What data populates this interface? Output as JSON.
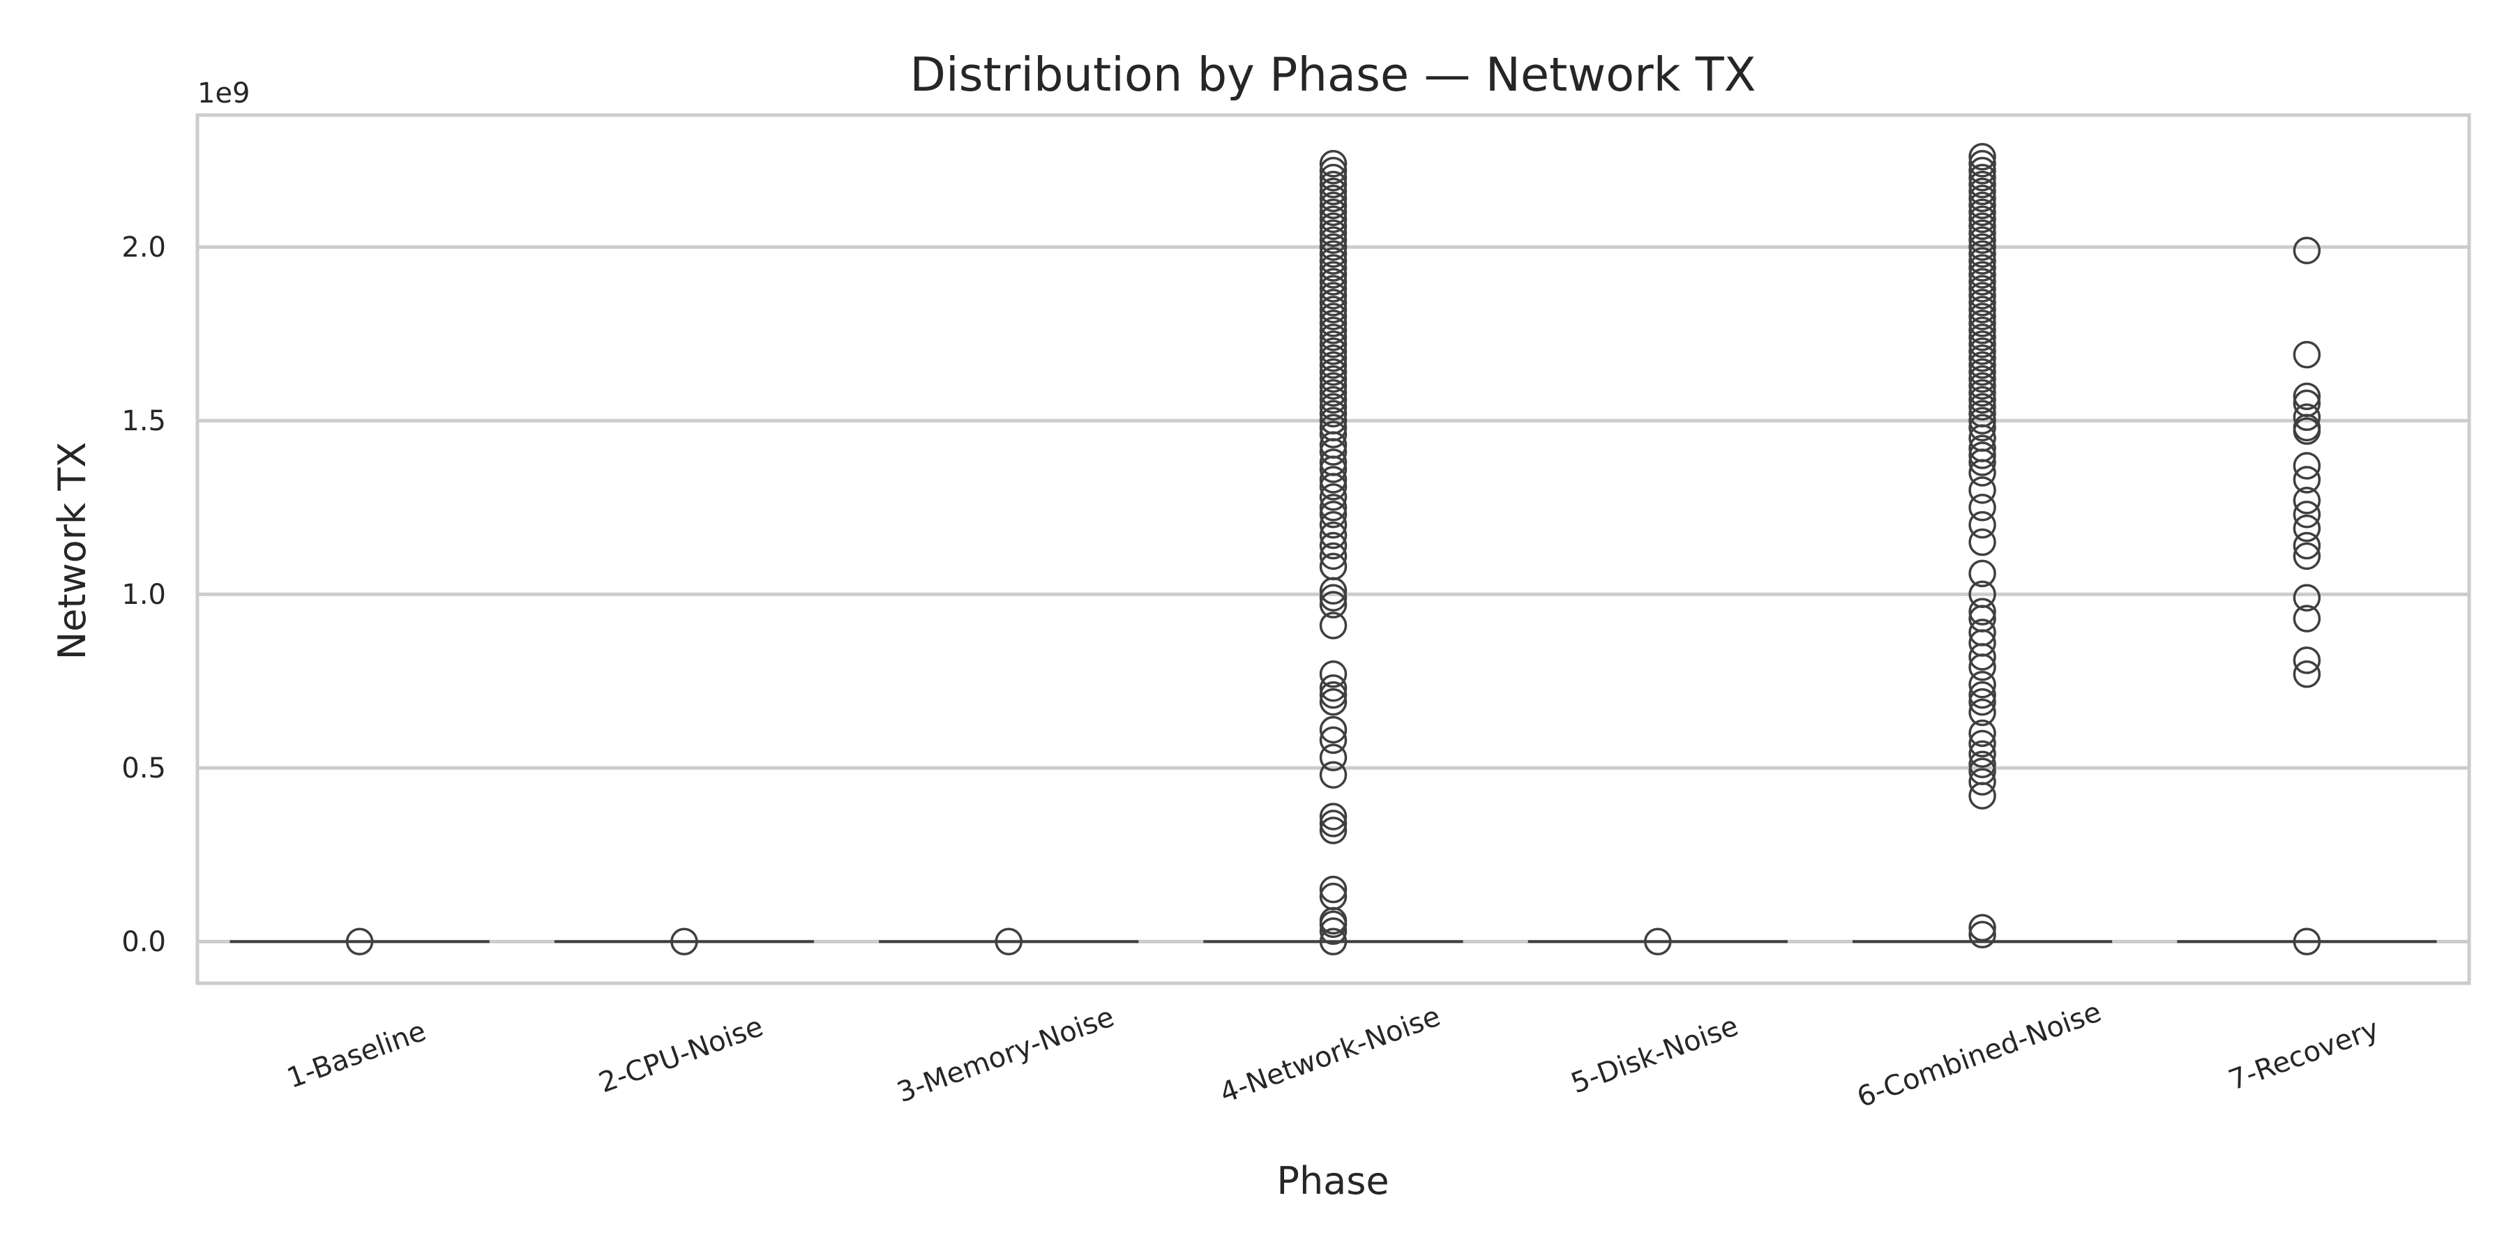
{
  "chart_data": {
    "type": "box",
    "title": "Distribution by Phase — Network TX",
    "xlabel": "Phase",
    "ylabel": "Network TX",
    "y_offset_label": "1e9",
    "y_scale": 1000000000,
    "ylim": [
      -0.12,
      2.38
    ],
    "yticks": [
      0.0,
      0.5,
      1.0,
      1.5,
      2.0
    ],
    "ytick_labels": [
      "0.0",
      "0.5",
      "1.0",
      "1.5",
      "2.0"
    ],
    "grid": true,
    "categories": [
      "1-Baseline",
      "2-CPU-Noise",
      "3-Memory-Noise",
      "4-Network-Noise",
      "5-Disk-Noise",
      "6-Combined-Noise",
      "7-Recovery"
    ],
    "box_median": [
      0,
      0,
      0,
      0,
      0,
      0,
      0
    ],
    "outliers": [
      [
        0.0
      ],
      [
        0.0
      ],
      [
        0.0
      ],
      [
        0.0,
        0.03,
        0.05,
        0.06,
        0.13,
        0.15,
        0.32,
        0.34,
        0.36,
        0.48,
        0.53,
        0.58,
        0.61,
        0.69,
        0.71,
        0.73,
        0.77,
        0.91,
        0.97,
        0.99,
        1.01,
        1.08,
        1.11,
        1.14,
        1.17,
        1.2,
        1.23,
        1.25,
        1.28,
        1.31,
        1.33,
        1.36,
        1.38,
        1.41,
        1.43,
        1.46,
        1.48,
        1.5,
        1.52,
        1.54,
        1.56,
        1.58,
        1.6,
        1.62,
        1.64,
        1.66,
        1.68,
        1.7,
        1.72,
        1.74,
        1.76,
        1.78,
        1.8,
        1.82,
        1.84,
        1.86,
        1.88,
        1.9,
        1.92,
        1.94,
        1.96,
        1.98,
        2.0,
        2.02,
        2.04,
        2.06,
        2.08,
        2.1,
        2.12,
        2.14,
        2.16,
        2.18,
        2.2,
        2.22,
        2.24
      ],
      [
        0.0
      ],
      [
        0.02,
        0.04,
        0.42,
        0.46,
        0.49,
        0.51,
        0.54,
        0.57,
        0.6,
        0.66,
        0.69,
        0.71,
        0.74,
        0.79,
        0.82,
        0.86,
        0.89,
        0.93,
        0.95,
        1.0,
        1.06,
        1.15,
        1.2,
        1.25,
        1.3,
        1.35,
        1.38,
        1.4,
        1.42,
        1.45,
        1.48,
        1.5,
        1.52,
        1.54,
        1.56,
        1.58,
        1.6,
        1.62,
        1.64,
        1.66,
        1.68,
        1.7,
        1.72,
        1.74,
        1.76,
        1.78,
        1.8,
        1.82,
        1.84,
        1.86,
        1.88,
        1.9,
        1.92,
        1.94,
        1.96,
        1.98,
        2.0,
        2.02,
        2.04,
        2.06,
        2.08,
        2.1,
        2.12,
        2.14,
        2.16,
        2.18,
        2.2,
        2.22,
        2.24,
        2.26
      ],
      [
        0.0,
        0.77,
        0.81,
        0.93,
        0.99,
        1.11,
        1.14,
        1.19,
        1.23,
        1.27,
        1.33,
        1.37,
        1.47,
        1.48,
        1.51,
        1.55,
        1.57,
        1.69,
        1.99
      ]
    ],
    "colors": {
      "box_line": "#3f3f3f",
      "marker_edge": "#3f3f3f",
      "grid": "#cccccc",
      "frame": "#cccccc",
      "text": "#262626"
    }
  }
}
